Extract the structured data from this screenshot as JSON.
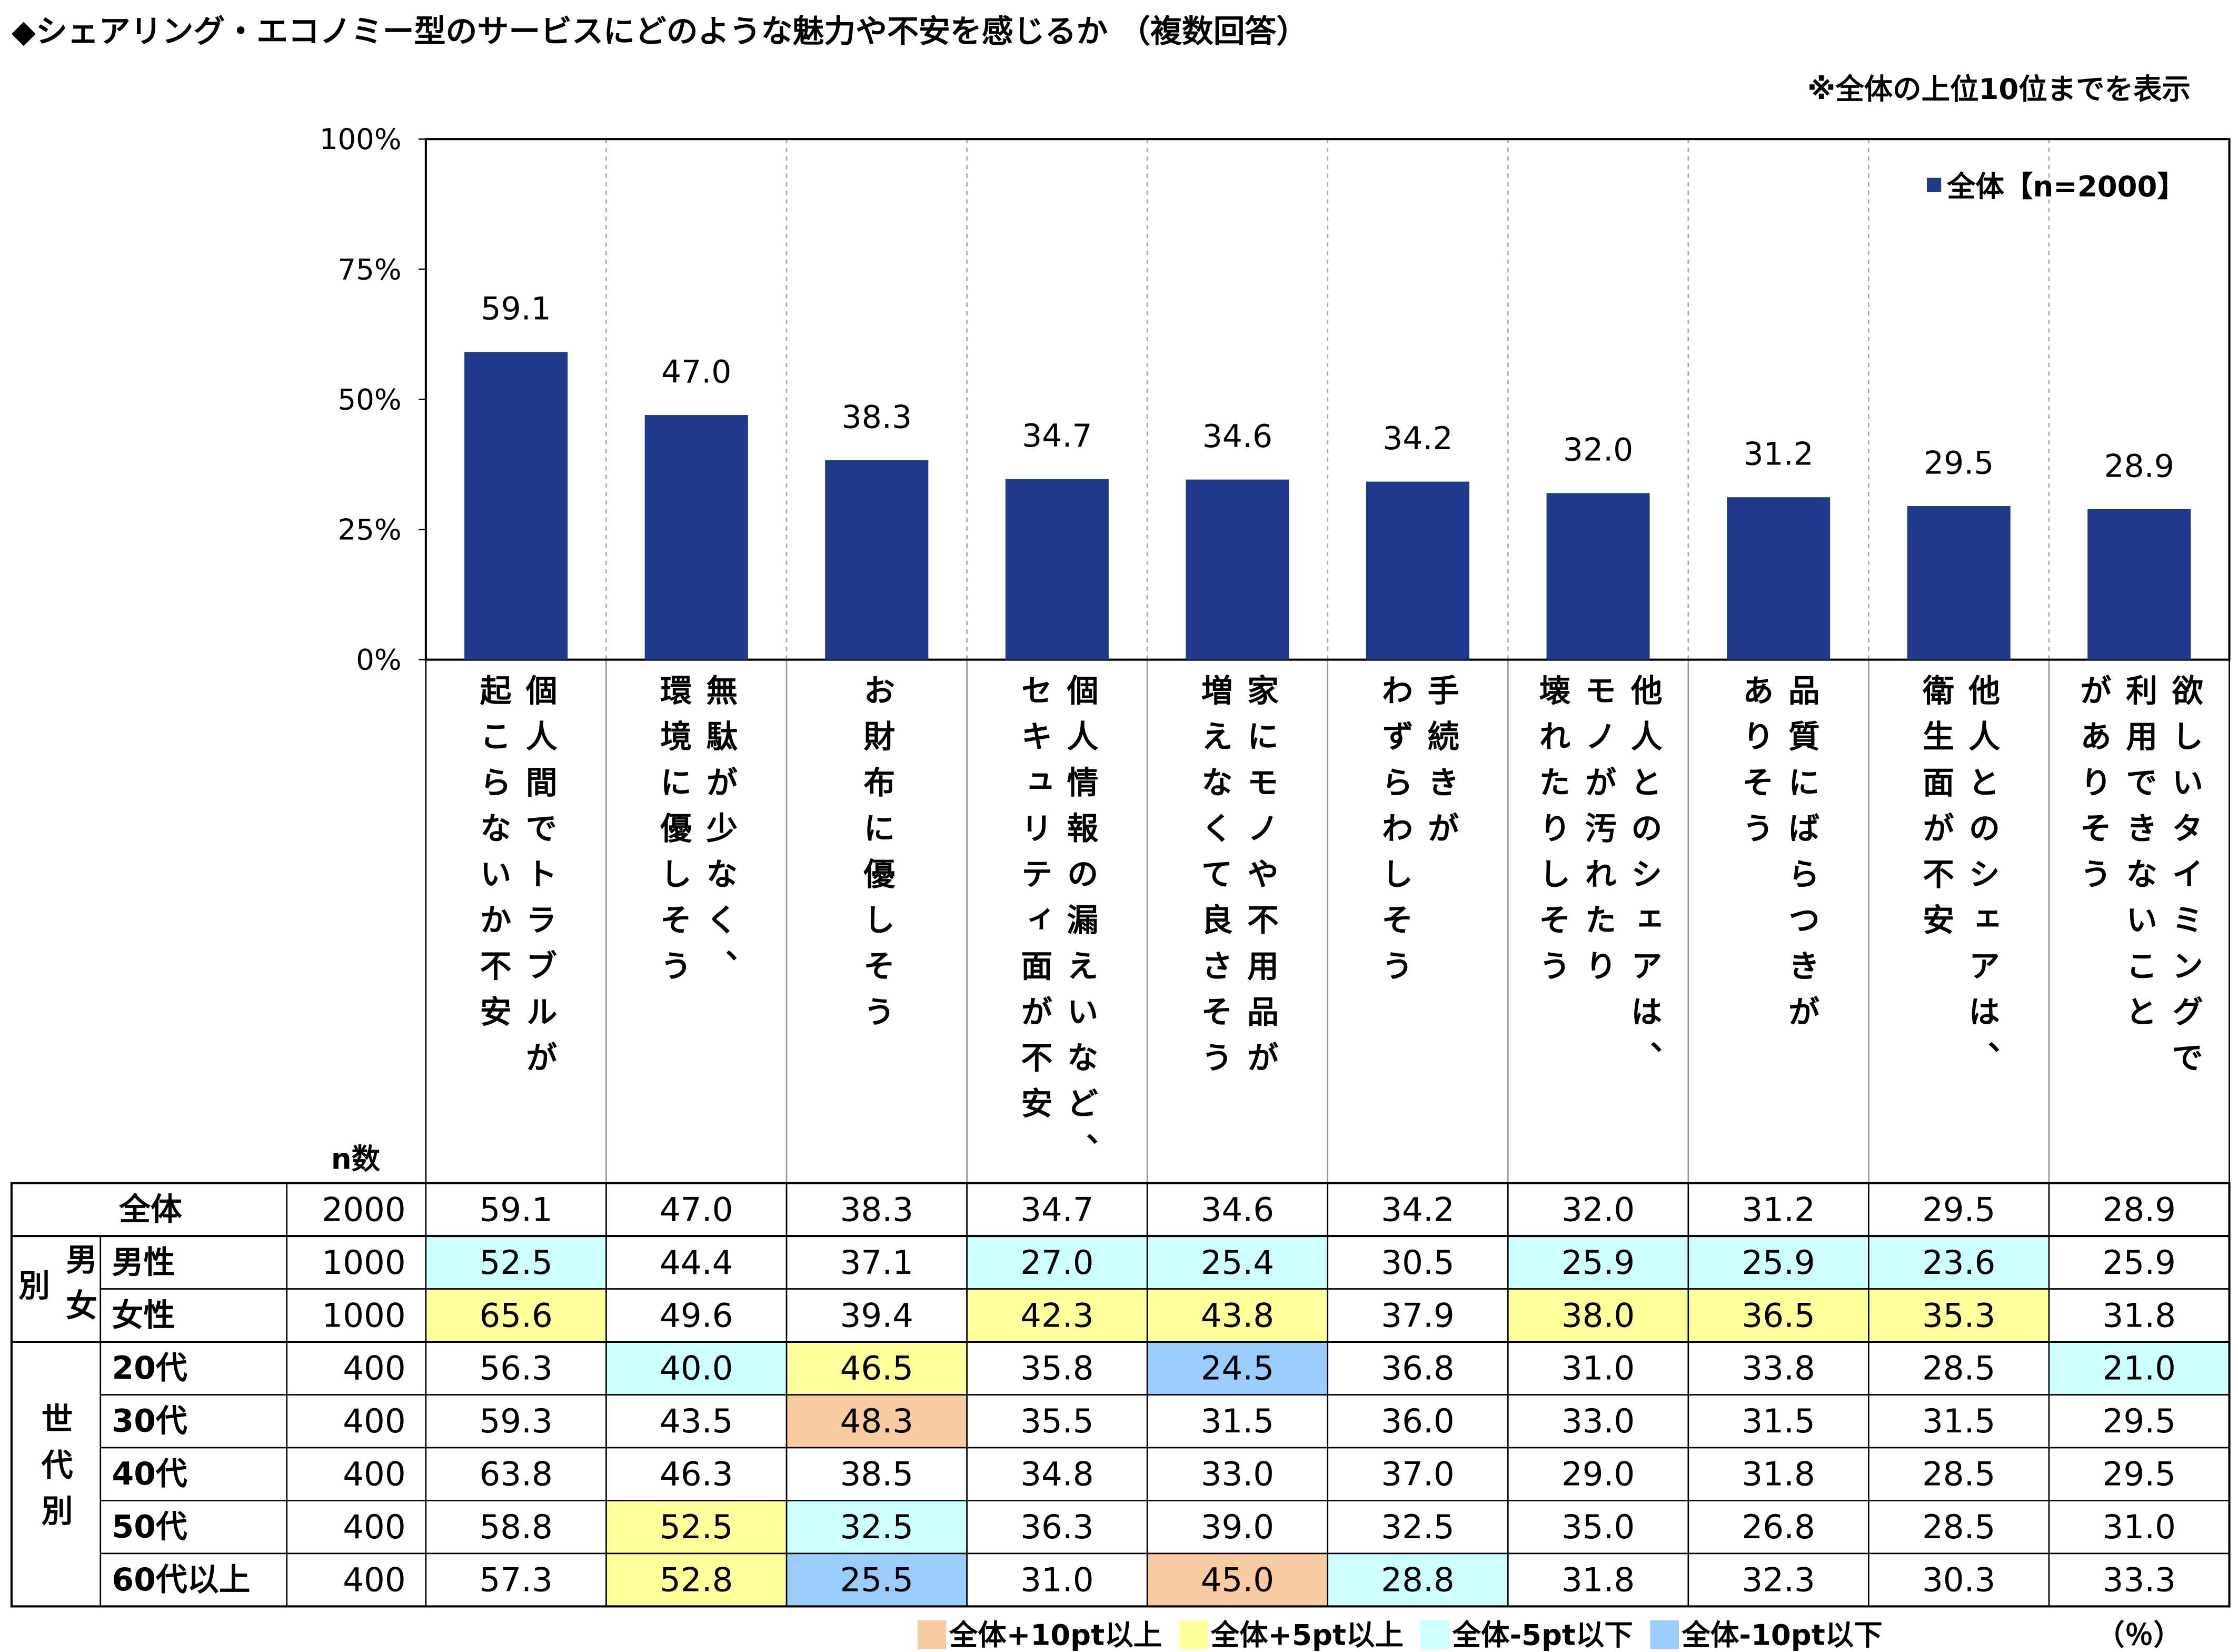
{
  "chart_data": {
    "type": "bar",
    "title": "◆シェアリング・エコノミー型のサービスにどのような魅力や不安を感じるか （複数回答）",
    "note": "※全体の上位10位までを表示",
    "categories": [
      [
        "個人間でトラブルが",
        "起こらないか不安"
      ],
      [
        "無駄が少なく、",
        "環境に優しそう"
      ],
      [
        "お財布に優しそう"
      ],
      [
        "個人情報の漏えいなど、",
        "セキュリティ面が不安"
      ],
      [
        "家にモノや不用品が",
        "増えなくて良さそう"
      ],
      [
        "手続きが",
        "わずらわしそう"
      ],
      [
        "他人とのシェアは、",
        "モノが汚れたり",
        "壊れたりしそう"
      ],
      [
        "品質にばらつきが",
        "ありそう"
      ],
      [
        "他人とのシェアは、",
        "衛生面が不安"
      ],
      [
        "欲しいタイミングで",
        "利用できないこと",
        "がありそう"
      ]
    ],
    "series": [
      {
        "name": "全体【n=2000】",
        "color": "#1f3a8a",
        "values": [
          59.1,
          47.0,
          38.3,
          34.7,
          34.6,
          34.2,
          32.0,
          31.2,
          29.5,
          28.9
        ],
        "value_labels": [
          "59.1",
          "47.0",
          "38.3",
          "34.7",
          "34.6",
          "34.2",
          "32.0",
          "31.2",
          "29.5",
          "28.9"
        ]
      }
    ],
    "ylim": [
      0,
      100
    ],
    "yticks": [
      {
        "value": 0,
        "label": "0%"
      },
      {
        "value": 25,
        "label": "25%"
      },
      {
        "value": 50,
        "label": "50%"
      },
      {
        "value": 75,
        "label": "75%"
      },
      {
        "value": 100,
        "label": "100%"
      }
    ],
    "legend": "top-right"
  },
  "table": {
    "n_header": "n数",
    "groups": [
      {
        "lines": [
          "別",
          "男女"
        ],
        "rows": [
          1,
          2
        ]
      },
      {
        "lines": [
          "世代別"
        ],
        "rows": [
          3,
          7
        ]
      }
    ],
    "rows": [
      {
        "label": "全体",
        "n": "2000",
        "values": [
          "59.1",
          "47.0",
          "38.3",
          "34.7",
          "34.6",
          "34.2",
          "32.0",
          "31.2",
          "29.5",
          "28.9"
        ],
        "fills": [
          null,
          null,
          null,
          null,
          null,
          null,
          null,
          null,
          null,
          null
        ]
      },
      {
        "label": "男性",
        "n": "1000",
        "values": [
          "52.5",
          "44.4",
          "37.1",
          "27.0",
          "25.4",
          "30.5",
          "25.9",
          "25.9",
          "23.6",
          "25.9"
        ],
        "fills": [
          "#ccffff",
          null,
          null,
          "#ccffff",
          "#ccffff",
          null,
          "#ccffff",
          "#ccffff",
          "#ccffff",
          null
        ]
      },
      {
        "label": "女性",
        "n": "1000",
        "values": [
          "65.6",
          "49.6",
          "39.4",
          "42.3",
          "43.8",
          "37.9",
          "38.0",
          "36.5",
          "35.3",
          "31.8"
        ],
        "fills": [
          "#ffff99",
          null,
          null,
          "#ffff99",
          "#ffff99",
          null,
          "#ffff99",
          "#ffff99",
          "#ffff99",
          null
        ]
      },
      {
        "label": "20代",
        "n": "400",
        "values": [
          "56.3",
          "40.0",
          "46.5",
          "35.8",
          "24.5",
          "36.8",
          "31.0",
          "33.8",
          "28.5",
          "21.0"
        ],
        "fills": [
          null,
          "#ccffff",
          "#ffff99",
          null,
          "#99ccff",
          null,
          null,
          null,
          null,
          "#ccffff"
        ]
      },
      {
        "label": "30代",
        "n": "400",
        "values": [
          "59.3",
          "43.5",
          "48.3",
          "35.5",
          "31.5",
          "36.0",
          "33.0",
          "31.5",
          "31.5",
          "29.5"
        ],
        "fills": [
          null,
          null,
          "#f8cba0",
          null,
          null,
          null,
          null,
          null,
          null,
          null
        ]
      },
      {
        "label": "40代",
        "n": "400",
        "values": [
          "63.8",
          "46.3",
          "38.5",
          "34.8",
          "33.0",
          "37.0",
          "29.0",
          "31.8",
          "28.5",
          "29.5"
        ],
        "fills": [
          null,
          null,
          null,
          null,
          null,
          null,
          null,
          null,
          null,
          null
        ]
      },
      {
        "label": "50代",
        "n": "400",
        "values": [
          "58.8",
          "52.5",
          "32.5",
          "36.3",
          "39.0",
          "32.5",
          "35.0",
          "26.8",
          "28.5",
          "31.0"
        ],
        "fills": [
          null,
          "#ffff99",
          "#ccffff",
          null,
          null,
          null,
          null,
          null,
          null,
          null
        ]
      },
      {
        "label": "60代以上",
        "n": "400",
        "values": [
          "57.3",
          "52.8",
          "25.5",
          "31.0",
          "45.0",
          "28.8",
          "31.8",
          "32.3",
          "30.3",
          "33.3"
        ],
        "fills": [
          null,
          "#ffff99",
          "#99ccff",
          null,
          "#f8cba0",
          "#ccffff",
          null,
          null,
          null,
          null
        ]
      }
    ],
    "legend": [
      {
        "label": "全体+10pt以上",
        "color": "#f8cba0"
      },
      {
        "label": "全体+5pt以上",
        "color": "#ffff99"
      },
      {
        "label": "全体-5pt以下",
        "color": "#ccffff"
      },
      {
        "label": "全体-10pt以下",
        "color": "#99ccff"
      }
    ],
    "unit": "（％）"
  }
}
